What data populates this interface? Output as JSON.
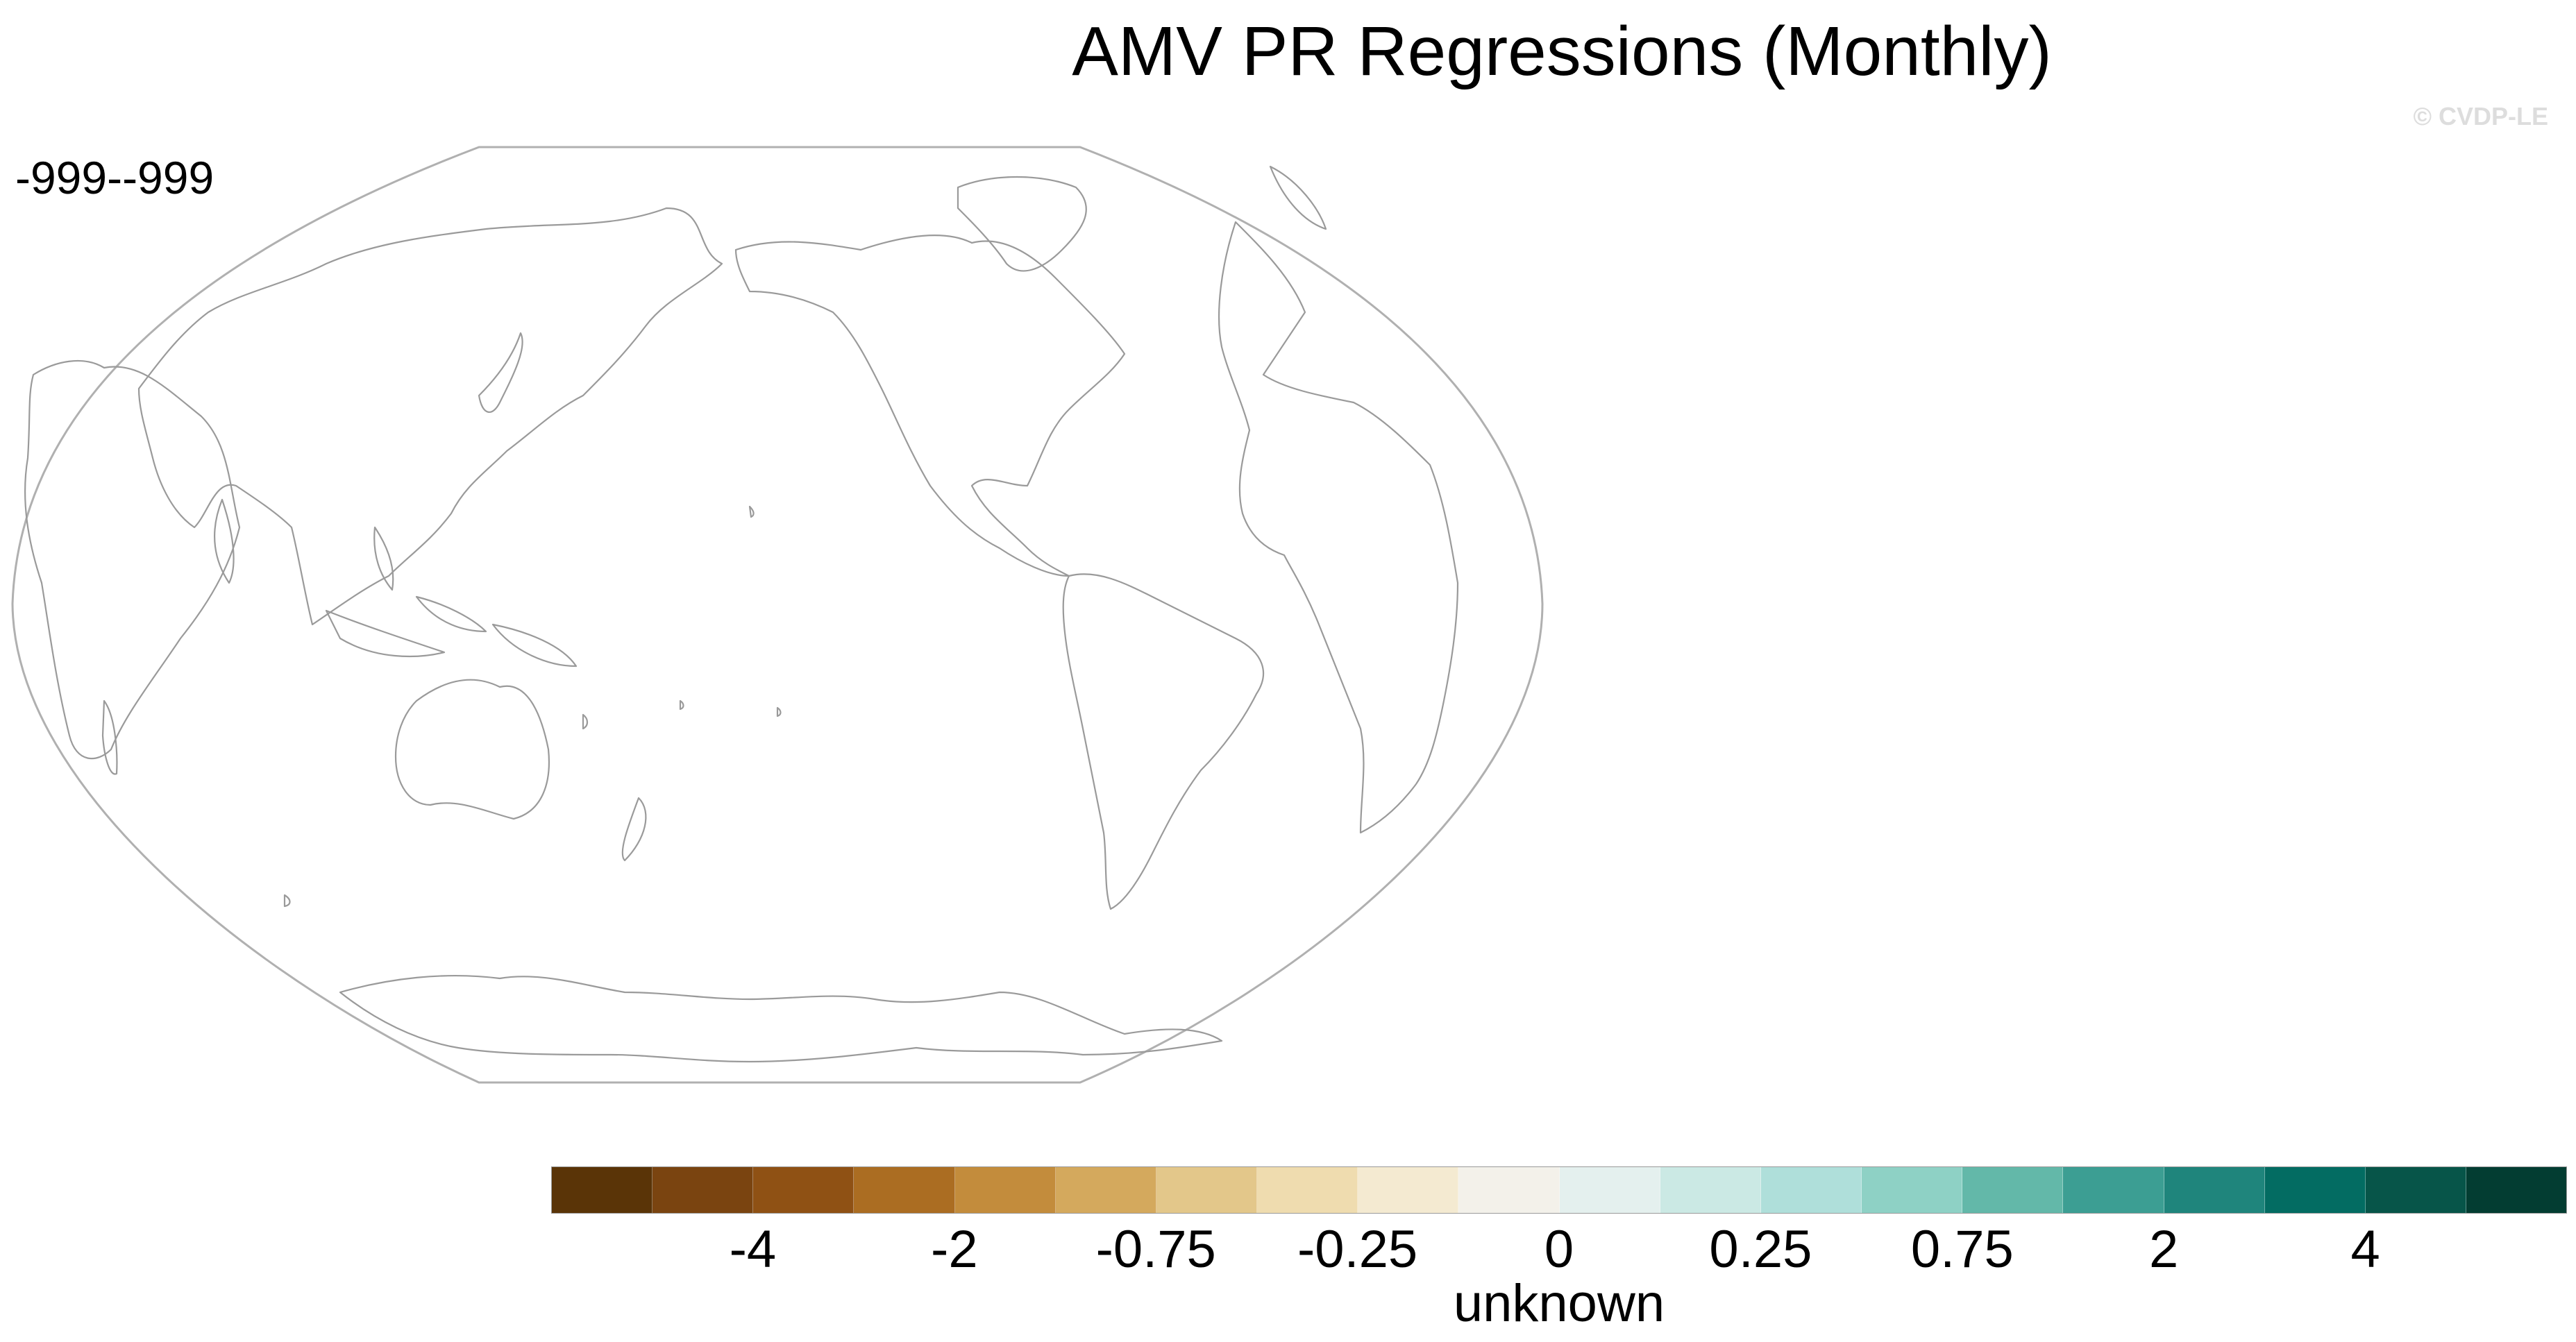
{
  "title": "AMV PR Regressions (Monthly)",
  "watermark": "© CVDP-LE",
  "panel": {
    "label": "-999--999",
    "projection": "robinson-pacific-centered",
    "content": "coastline outlines only, no data"
  },
  "colorbar": {
    "units": "unknown",
    "colors": [
      "#5a3407",
      "#7a4410",
      "#8f5114",
      "#ab6d22",
      "#c38c3c",
      "#d4a95d",
      "#e3c78a",
      "#efdcaf",
      "#f4ead1",
      "#f3f1ea",
      "#e4f0ee",
      "#cbe9e4",
      "#afdfda",
      "#8ed1c5",
      "#63b8a9",
      "#3c9e93",
      "#1f857c",
      "#036c62",
      "#075549",
      "#033d32"
    ],
    "tick_labels": [
      "-4",
      "-2",
      "-0.75",
      "-0.25",
      "0",
      "0.25",
      "0.75",
      "2",
      "4"
    ]
  }
}
